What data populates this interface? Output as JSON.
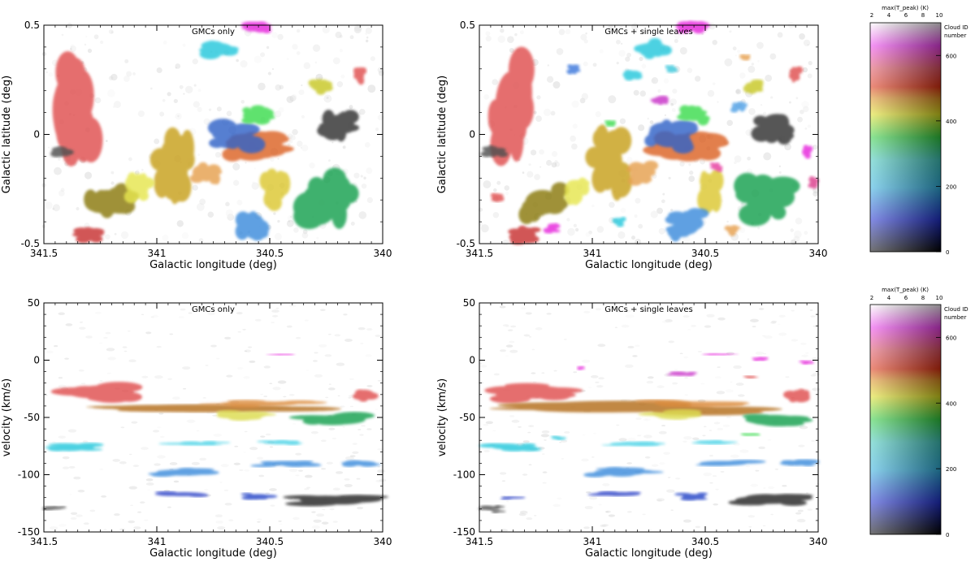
{
  "chart_data": [
    {
      "type": "heatmap",
      "title": "GMCs only",
      "xlabel": "Galactic longitude (deg)",
      "ylabel": "Galactic latitude (deg)",
      "xlim": [
        341.5,
        340
      ],
      "ylim": [
        -0.5,
        0.5
      ],
      "xticks": [
        {
          "v": 341.5,
          "label": "341.5"
        },
        {
          "v": 341,
          "label": "341"
        },
        {
          "v": 340.5,
          "label": "340.5"
        },
        {
          "v": 340,
          "label": "340"
        }
      ],
      "yticks": [
        {
          "v": 0.5,
          "label": "0.5"
        },
        {
          "v": 0,
          "label": "0"
        },
        {
          "v": -0.5,
          "label": "-0.5"
        }
      ],
      "clouds": [
        {
          "l": 341.36,
          "b": 0.12,
          "w": 0.2,
          "h": 0.48,
          "c": "#e05050"
        },
        {
          "l": 341.22,
          "b": -0.31,
          "w": 0.22,
          "h": 0.16,
          "c": "#8a7a08"
        },
        {
          "l": 340.93,
          "b": -0.13,
          "w": 0.18,
          "h": 0.3,
          "c": "#c8a01e"
        },
        {
          "l": 340.58,
          "b": -0.05,
          "w": 0.32,
          "h": 0.12,
          "c": "#dc6428"
        },
        {
          "l": 340.23,
          "b": -0.29,
          "w": 0.26,
          "h": 0.24,
          "c": "#14a050"
        },
        {
          "l": 340.2,
          "b": 0.04,
          "w": 0.16,
          "h": 0.14,
          "c": "#323232"
        },
        {
          "l": 340.66,
          "b": -0.01,
          "w": 0.22,
          "h": 0.14,
          "c": "#3264c8"
        },
        {
          "l": 340.72,
          "b": 0.39,
          "w": 0.16,
          "h": 0.08,
          "c": "#28c8dc"
        },
        {
          "l": 340.56,
          "b": 0.49,
          "w": 0.13,
          "h": 0.05,
          "c": "#e628dc"
        },
        {
          "l": 340.48,
          "b": -0.25,
          "w": 0.12,
          "h": 0.18,
          "c": "#dcc832"
        },
        {
          "l": 340.58,
          "b": -0.41,
          "w": 0.16,
          "h": 0.14,
          "c": "#3c8cdc"
        },
        {
          "l": 341.3,
          "b": -0.46,
          "w": 0.12,
          "h": 0.06,
          "c": "#c83232"
        },
        {
          "l": 340.78,
          "b": -0.18,
          "w": 0.12,
          "h": 0.1,
          "c": "#e6a050"
        },
        {
          "l": 340.55,
          "b": 0.09,
          "w": 0.14,
          "h": 0.08,
          "c": "#3cdc50"
        },
        {
          "l": 341.43,
          "b": -0.08,
          "w": 0.1,
          "h": 0.05,
          "c": "#505050"
        },
        {
          "l": 341.08,
          "b": -0.25,
          "w": 0.12,
          "h": 0.12,
          "c": "#e6e650"
        },
        {
          "l": 340.28,
          "b": 0.22,
          "w": 0.1,
          "h": 0.06,
          "c": "#c8c828"
        },
        {
          "l": 340.1,
          "b": 0.27,
          "w": 0.05,
          "h": 0.07,
          "c": "#e05050"
        }
      ]
    },
    {
      "type": "heatmap",
      "title": "GMCs + single leaves",
      "xlabel": "Galactic longitude (deg)",
      "ylabel": "Galactic latitude (deg)",
      "xlim": [
        341.5,
        340
      ],
      "ylim": [
        -0.5,
        0.5
      ],
      "xticks": [
        {
          "v": 341.5,
          "label": "341.5"
        },
        {
          "v": 341,
          "label": "341"
        },
        {
          "v": 340.5,
          "label": "340.5"
        },
        {
          "v": 340,
          "label": "340"
        }
      ],
      "yticks": [
        {
          "v": 0.5,
          "label": "0.5"
        },
        {
          "v": 0,
          "label": "0"
        },
        {
          "v": -0.5,
          "label": "-0.5"
        }
      ],
      "clouds": [
        {
          "l": 341.36,
          "b": 0.12,
          "w": 0.2,
          "h": 0.48,
          "c": "#e05050"
        },
        {
          "l": 341.22,
          "b": -0.31,
          "w": 0.22,
          "h": 0.16,
          "c": "#8a7a08"
        },
        {
          "l": 340.93,
          "b": -0.13,
          "w": 0.18,
          "h": 0.3,
          "c": "#c8a01e"
        },
        {
          "l": 340.58,
          "b": -0.05,
          "w": 0.32,
          "h": 0.12,
          "c": "#dc6428"
        },
        {
          "l": 340.23,
          "b": -0.29,
          "w": 0.26,
          "h": 0.24,
          "c": "#14a050"
        },
        {
          "l": 340.2,
          "b": 0.04,
          "w": 0.16,
          "h": 0.14,
          "c": "#323232"
        },
        {
          "l": 340.66,
          "b": -0.01,
          "w": 0.22,
          "h": 0.14,
          "c": "#3264c8"
        },
        {
          "l": 340.72,
          "b": 0.39,
          "w": 0.16,
          "h": 0.08,
          "c": "#28c8dc"
        },
        {
          "l": 340.56,
          "b": 0.49,
          "w": 0.13,
          "h": 0.05,
          "c": "#e628dc"
        },
        {
          "l": 340.48,
          "b": -0.25,
          "w": 0.12,
          "h": 0.18,
          "c": "#dcc832"
        },
        {
          "l": 340.58,
          "b": -0.41,
          "w": 0.16,
          "h": 0.14,
          "c": "#3c8cdc"
        },
        {
          "l": 341.3,
          "b": -0.46,
          "w": 0.14,
          "h": 0.08,
          "c": "#c83232"
        },
        {
          "l": 340.78,
          "b": -0.18,
          "w": 0.12,
          "h": 0.1,
          "c": "#e6a050"
        },
        {
          "l": 340.55,
          "b": 0.09,
          "w": 0.14,
          "h": 0.08,
          "c": "#3cdc50"
        },
        {
          "l": 341.43,
          "b": -0.08,
          "w": 0.1,
          "h": 0.05,
          "c": "#505050"
        },
        {
          "l": 341.08,
          "b": -0.25,
          "w": 0.12,
          "h": 0.12,
          "c": "#e6e650"
        },
        {
          "l": 340.28,
          "b": 0.22,
          "w": 0.1,
          "h": 0.06,
          "c": "#c8c828"
        },
        {
          "l": 340.1,
          "b": 0.27,
          "w": 0.05,
          "h": 0.07,
          "c": "#e05050"
        },
        {
          "l": 341.08,
          "b": 0.3,
          "w": 0.06,
          "h": 0.04,
          "c": "#3c78dc"
        },
        {
          "l": 340.82,
          "b": 0.27,
          "w": 0.08,
          "h": 0.04,
          "c": "#28c8dc"
        },
        {
          "l": 340.7,
          "b": 0.16,
          "w": 0.07,
          "h": 0.04,
          "c": "#c832c8"
        },
        {
          "l": 340.35,
          "b": 0.13,
          "w": 0.06,
          "h": 0.05,
          "c": "#50a0e6"
        },
        {
          "l": 340.05,
          "b": -0.08,
          "w": 0.05,
          "h": 0.06,
          "c": "#e628dc"
        },
        {
          "l": 340.02,
          "b": -0.22,
          "w": 0.05,
          "h": 0.05,
          "c": "#dc3c8c"
        },
        {
          "l": 341.42,
          "b": -0.29,
          "w": 0.05,
          "h": 0.04,
          "c": "#e05050"
        },
        {
          "l": 341.18,
          "b": -0.43,
          "w": 0.06,
          "h": 0.04,
          "c": "#e628dc"
        },
        {
          "l": 340.88,
          "b": -0.4,
          "w": 0.05,
          "h": 0.04,
          "c": "#28c8dc"
        },
        {
          "l": 340.38,
          "b": -0.44,
          "w": 0.06,
          "h": 0.04,
          "c": "#e6a050"
        },
        {
          "l": 340.32,
          "b": 0.35,
          "w": 0.05,
          "h": 0.03,
          "c": "#e6a050"
        },
        {
          "l": 340.65,
          "b": 0.3,
          "w": 0.05,
          "h": 0.03,
          "c": "#3cc8dc"
        },
        {
          "l": 340.92,
          "b": 0.05,
          "w": 0.05,
          "h": 0.03,
          "c": "#3cdc50"
        },
        {
          "l": 340.45,
          "b": -0.15,
          "w": 0.05,
          "h": 0.04,
          "c": "#e63ca0"
        }
      ]
    },
    {
      "type": "heatmap",
      "title": "GMCs only",
      "xlabel": "Galactic longitude (deg)",
      "ylabel": "velocity (km/s)",
      "xlim": [
        341.5,
        340
      ],
      "ylim": [
        -150,
        50
      ],
      "xticks": [
        {
          "v": 341.5,
          "label": "341.5"
        },
        {
          "v": 341,
          "label": "341"
        },
        {
          "v": 340.5,
          "label": "340.5"
        },
        {
          "v": 340,
          "label": "340"
        }
      ],
      "yticks": [
        {
          "v": 50,
          "label": "50"
        },
        {
          "v": 0,
          "label": "0"
        },
        {
          "v": -50,
          "label": "-50"
        },
        {
          "v": -100,
          "label": "-100"
        },
        {
          "v": -150,
          "label": "-150"
        }
      ],
      "clouds": [
        {
          "l": 341.25,
          "b": -28,
          "w": 0.42,
          "h": 16,
          "c": "#e05050"
        },
        {
          "l": 340.08,
          "b": -30,
          "w": 0.12,
          "h": 12,
          "c": "#e05050"
        },
        {
          "l": 340.8,
          "b": -42,
          "w": 1.1,
          "h": 10,
          "c": "#b46e1e"
        },
        {
          "l": 340.55,
          "b": -38,
          "w": 0.5,
          "h": 6,
          "c": "#dc8c3c"
        },
        {
          "l": 340.2,
          "b": -52,
          "w": 0.35,
          "h": 12,
          "c": "#14a050"
        },
        {
          "l": 340.62,
          "b": -48,
          "w": 0.3,
          "h": 8,
          "c": "#dcdc50"
        },
        {
          "l": 341.36,
          "b": -76,
          "w": 0.24,
          "h": 6,
          "c": "#28c8dc"
        },
        {
          "l": 340.83,
          "b": -73,
          "w": 0.26,
          "h": 4,
          "c": "#46d2e6"
        },
        {
          "l": 340.45,
          "b": -72,
          "w": 0.2,
          "h": 4,
          "c": "#46d2e6"
        },
        {
          "l": 340.42,
          "b": -90,
          "w": 0.3,
          "h": 6,
          "c": "#3c8cdc"
        },
        {
          "l": 340.1,
          "b": -90,
          "w": 0.2,
          "h": 6,
          "c": "#3c8cdc"
        },
        {
          "l": 340.88,
          "b": -98,
          "w": 0.32,
          "h": 8,
          "c": "#3c8cdc"
        },
        {
          "l": 340.88,
          "b": -117,
          "w": 0.26,
          "h": 5,
          "c": "#3246c8"
        },
        {
          "l": 340.22,
          "b": -122,
          "w": 0.42,
          "h": 10,
          "c": "#282828"
        },
        {
          "l": 340.55,
          "b": -119,
          "w": 0.14,
          "h": 6,
          "c": "#2846c8"
        },
        {
          "l": 341.45,
          "b": -129,
          "w": 0.1,
          "h": 4,
          "c": "#505050"
        },
        {
          "l": 340.44,
          "b": 5,
          "w": 0.14,
          "h": 2,
          "c": "#e628dc"
        }
      ]
    },
    {
      "type": "heatmap",
      "title": "GMCs + single leaves",
      "xlabel": "Galactic longitude (deg)",
      "ylabel": "velocity (km/s)",
      "xlim": [
        341.5,
        340
      ],
      "ylim": [
        -150,
        50
      ],
      "xticks": [
        {
          "v": 341.5,
          "label": "341.5"
        },
        {
          "v": 341,
          "label": "341"
        },
        {
          "v": 340.5,
          "label": "340.5"
        },
        {
          "v": 340,
          "label": "340"
        }
      ],
      "yticks": [
        {
          "v": 50,
          "label": "50"
        },
        {
          "v": 0,
          "label": "0"
        },
        {
          "v": -50,
          "label": "-50"
        },
        {
          "v": -100,
          "label": "-100"
        },
        {
          "v": -150,
          "label": "-150"
        }
      ],
      "clouds": [
        {
          "l": 341.25,
          "b": -28,
          "w": 0.42,
          "h": 16,
          "c": "#e05050"
        },
        {
          "l": 340.08,
          "b": -30,
          "w": 0.12,
          "h": 12,
          "c": "#e05050"
        },
        {
          "l": 340.8,
          "b": -42,
          "w": 1.1,
          "h": 10,
          "c": "#b46e1e"
        },
        {
          "l": 340.55,
          "b": -38,
          "w": 0.5,
          "h": 6,
          "c": "#dc8c3c"
        },
        {
          "l": 340.2,
          "b": -52,
          "w": 0.35,
          "h": 12,
          "c": "#14a050"
        },
        {
          "l": 340.62,
          "b": -48,
          "w": 0.3,
          "h": 8,
          "c": "#dcdc50"
        },
        {
          "l": 341.36,
          "b": -76,
          "w": 0.24,
          "h": 6,
          "c": "#28c8dc"
        },
        {
          "l": 340.83,
          "b": -73,
          "w": 0.26,
          "h": 4,
          "c": "#46d2e6"
        },
        {
          "l": 340.45,
          "b": -72,
          "w": 0.2,
          "h": 4,
          "c": "#46d2e6"
        },
        {
          "l": 340.42,
          "b": -90,
          "w": 0.3,
          "h": 6,
          "c": "#3c8cdc"
        },
        {
          "l": 340.1,
          "b": -90,
          "w": 0.2,
          "h": 6,
          "c": "#3c8cdc"
        },
        {
          "l": 340.88,
          "b": -98,
          "w": 0.32,
          "h": 8,
          "c": "#3c8cdc"
        },
        {
          "l": 340.88,
          "b": -117,
          "w": 0.26,
          "h": 5,
          "c": "#3246c8"
        },
        {
          "l": 340.22,
          "b": -122,
          "w": 0.42,
          "h": 10,
          "c": "#282828"
        },
        {
          "l": 340.55,
          "b": -119,
          "w": 0.14,
          "h": 6,
          "c": "#2846c8"
        },
        {
          "l": 341.45,
          "b": -129,
          "w": 0.1,
          "h": 4,
          "c": "#505050"
        },
        {
          "l": 340.44,
          "b": 5,
          "w": 0.14,
          "h": 2,
          "c": "#e628dc"
        },
        {
          "l": 340.6,
          "b": -12,
          "w": 0.12,
          "h": 4,
          "c": "#c832c8"
        },
        {
          "l": 340.25,
          "b": 1,
          "w": 0.08,
          "h": 3,
          "c": "#e628dc"
        },
        {
          "l": 340.05,
          "b": -2,
          "w": 0.06,
          "h": 3,
          "c": "#e628dc"
        },
        {
          "l": 341.05,
          "b": -7,
          "w": 0.04,
          "h": 3,
          "c": "#e628dc"
        },
        {
          "l": 340.3,
          "b": -15,
          "w": 0.06,
          "h": 3,
          "c": "#e05050"
        },
        {
          "l": 341.35,
          "b": -120,
          "w": 0.1,
          "h": 3,
          "c": "#3246c8"
        },
        {
          "l": 341.15,
          "b": -68,
          "w": 0.06,
          "h": 3,
          "c": "#28c8dc"
        },
        {
          "l": 340.3,
          "b": -65,
          "w": 0.08,
          "h": 3,
          "c": "#3cdc50"
        },
        {
          "l": 341.42,
          "b": -132,
          "w": 0.06,
          "h": 3,
          "c": "#505050"
        }
      ]
    }
  ],
  "colorbars": [
    {
      "top_label": "max(T_peak) (K)",
      "top_ticks": [
        "2",
        "4",
        "6",
        "8",
        "10"
      ],
      "side_label": [
        "Cloud ID",
        "number"
      ],
      "ticks": [
        {
          "v": 0,
          "label": "0"
        },
        {
          "v": 200,
          "label": "200"
        },
        {
          "v": 400,
          "label": "400"
        },
        {
          "v": 600,
          "label": "600"
        }
      ],
      "max": 700
    },
    {
      "top_label": "max(T_peak) (K)",
      "top_ticks": [
        "2",
        "4",
        "6",
        "8",
        "10"
      ],
      "side_label": [
        "Cloud ID",
        "number"
      ],
      "ticks": [
        {
          "v": 0,
          "label": "0"
        },
        {
          "v": 200,
          "label": "200"
        },
        {
          "v": 400,
          "label": "400"
        },
        {
          "v": 600,
          "label": "600"
        }
      ],
      "max": 700
    }
  ],
  "colors": {
    "axis": "#000000",
    "background_emission": "#9a9a9a"
  }
}
